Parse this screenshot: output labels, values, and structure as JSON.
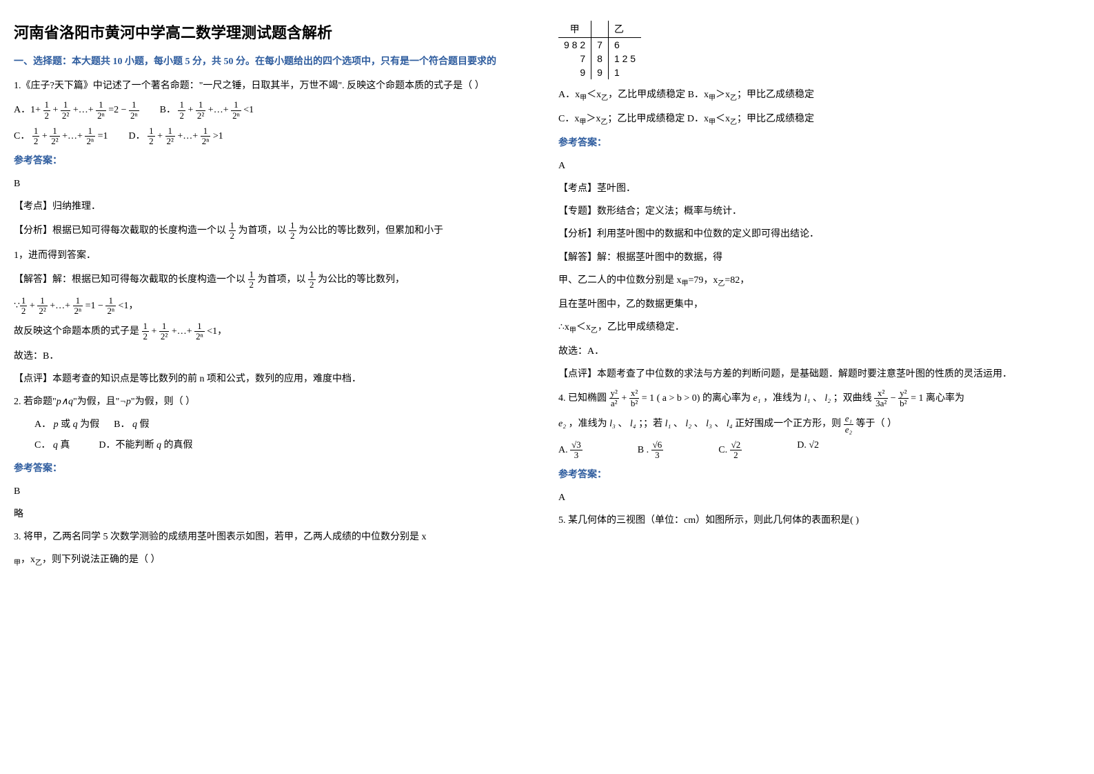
{
  "title": "河南省洛阳市黄河中学高二数学理测试题含解析",
  "section1": "一、选择题：本大题共 10 小题，每小题 5 分，共 50 分。在每小题给出的四个选项中，只有是一个符合题目要求的",
  "q1": {
    "text": "1.《庄子?天下篇》中记述了一个著名命题：\"一尺之锤，日取其半，万世不竭\". 反映这个命题本质的式子是（   ）",
    "optA_prefix": "A．1+",
    "optA_suffix": "=2 −",
    "optB_prefix": "B．",
    "optB_suffix": "<1",
    "optC_prefix": "C．",
    "optC_suffix": "=1",
    "optD_prefix": "D．",
    "optD_suffix": ">1",
    "answer": "B",
    "point_label": "【考点】",
    "point_text": "归纳推理．",
    "analysis_label": "【分析】",
    "analysis_text1": "根据已知可得每次截取的长度构造一个以",
    "analysis_text2": "为首项，以",
    "analysis_text3": "为公比的等比数列，但累加和小于",
    "analysis_text4": "1，进而得到答案．",
    "solve_label": "【解答】",
    "solve_text1": "解：根据已知可得每次截取的长度构造一个以",
    "solve_text2": "为首项，以",
    "solve_text3": "为公比的等比数列，",
    "sum_suffix": "=1 −",
    "sum_lt": "<1，",
    "reflect": "故反映这个命题本质的式子是",
    "reflect_suffix": "<1，",
    "choose": "故选：B．",
    "comment_label": "【点评】",
    "comment_text": "本题考查的知识点是等比数列的前 n 项和公式，数列的应用，难度中档．",
    "frac_1": "1",
    "frac_2": "2",
    "frac_2sq": "2²",
    "frac_2n": "2ⁿ",
    "plus": "+",
    "dots": "+…+"
  },
  "q2": {
    "text": "2. 若命题\"",
    "text2": "\"为假，且\"",
    "text3": "\"为假，则（  ）",
    "pq": "p∧q",
    "notp": "¬p",
    "optA": "或",
    "optA_pre": "A．",
    "optA_suf": "为假",
    "optB": "B．",
    "optB_suf": "假",
    "optC": "C．",
    "optC_suf": "真",
    "optD": "D．不能判断",
    "optD_suf": "的真假",
    "p": "p",
    "q": "q",
    "answer": "B",
    "brief": "略"
  },
  "q3": {
    "text": "3. 将甲，乙两名同学 5 次数学测验的成绩用茎叶图表示如图，若甲，乙两人成绩的中位数分别是 x",
    "text2": "，x",
    "text3": "，则下列说法正确的是（   ）",
    "sub_jia": "甲",
    "sub_yi": "乙",
    "stem_leaf": {
      "header_jia": "甲",
      "header_yi": "乙",
      "rows": [
        {
          "jia": "9 8 2",
          "stem": "7",
          "yi": "6"
        },
        {
          "jia": "7",
          "stem": "8",
          "yi": "1 2 5"
        },
        {
          "jia": "9",
          "stem": "9",
          "yi": "1"
        }
      ]
    },
    "optA": "A．x",
    "optA_mid": "＜x",
    "optA_suf": "，乙比甲成绩稳定",
    "optB": "B．x",
    "optB_mid": "＞x",
    "optB_suf": "；甲比乙成绩稳定",
    "optC": "C．x",
    "optC_mid": "＞x",
    "optC_suf": "；乙比甲成绩稳定",
    "optD": "D．x",
    "optD_mid": "＜x",
    "optD_suf": "；甲比乙成绩稳定",
    "answer": "A",
    "point_label": "【考点】",
    "point_text": "茎叶图．",
    "topic_label": "【专题】",
    "topic_text": "数形结合；定义法；概率与统计．",
    "analysis_label": "【分析】",
    "analysis_text": "利用茎叶图中的数据和中位数的定义即可得出结论．",
    "solve_label": "【解答】",
    "solve_text": "解：根据茎叶图中的数据，得",
    "solve_line2a": "甲、乙二人的中位数分别是 x",
    "solve_line2b": "=79，x",
    "solve_line2c": "=82，",
    "solve_line3": "且在茎叶图中，乙的数据更集中，",
    "solve_line4a": "∴x",
    "solve_line4b": "＜x",
    "solve_line4c": "，乙比甲成绩稳定．",
    "choose": "故选：A．",
    "comment_label": "【点评】",
    "comment_text": "本题考查了中位数的求法与方差的判断问题，是基础题．解题时要注意茎叶图的性质的灵活运用．"
  },
  "q4": {
    "text": "4. 已知椭圆",
    "text2": "( a > b > 0)  的离心率为",
    "text3": "，准线为",
    "text4": "、",
    "text5": "；双曲线",
    "text6": "离心率为",
    "line2a": "，准线为",
    "line2b": "、",
    "line2c": "；；若",
    "line2d": "、",
    "line2e": "、",
    "line2f": "、",
    "line2g": "正好围成一个正方形，则",
    "line2h": "等于（       ）",
    "e1": "e₁",
    "e2": "e₂",
    "l1": "l₁",
    "l2": "l₂",
    "l3": "l₃",
    "l4": "l₄",
    "ellipse_num1": "y²",
    "ellipse_den1": "a²",
    "ellipse_num2": "x²",
    "ellipse_den2": "b²",
    "eq1": "= 1",
    "hyp_num1": "x²",
    "hyp_den1": "3a²",
    "hyp_num2": "y²",
    "hyp_den2": "b²",
    "minus": "−",
    "plus": "+",
    "optA": "A.",
    "optA_num": "√3",
    "optA_den": "3",
    "optB": "B .",
    "optB_num": "√6",
    "optB_den": "3",
    "optC": "C.",
    "optC_num": "√2",
    "optC_den": "2",
    "optD": "D.",
    "optD_val": "√2",
    "ratio_num": "e₁",
    "ratio_den": "e₂",
    "answer": "A"
  },
  "q5": {
    "text": "5. 某几何体的三视图（单位：cm）如图所示，则此几何体的表面积是(           )"
  },
  "labels": {
    "answer": "参考答案："
  }
}
